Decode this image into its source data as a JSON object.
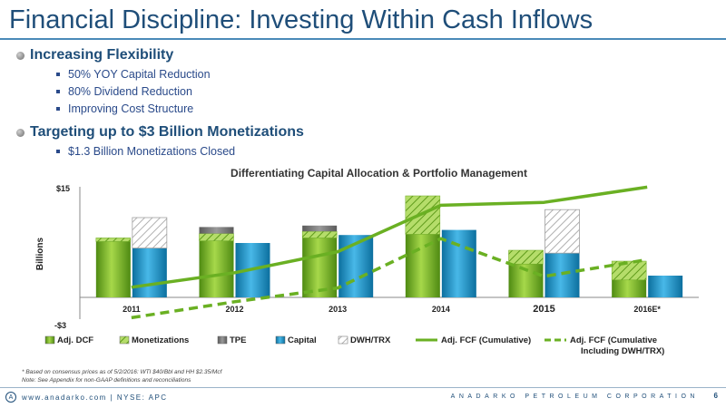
{
  "slide": {
    "title": "Financial Discipline: Investing Within Cash Inflows",
    "bullets": [
      {
        "text": "Increasing Flexibility",
        "subs": [
          "50% YOY Capital Reduction",
          "80% Dividend Reduction",
          "Improving Cost Structure"
        ]
      },
      {
        "text": "Targeting up to $3 Billion Monetizations",
        "subs": [
          "$1.3 Billion Monetizations Closed"
        ]
      }
    ],
    "footnote_1": "*  Based on consensus prices as of 5/2/2016: WTI $40/Bbl and HH $2.35/Mcf",
    "footnote_2": "Note: See Appendix for non-GAAP definitions and reconciliations",
    "footer_url": "www.anadarko.com | NYSE: APC",
    "footer_company": "ANADARKO PETROLEUM CORPORATION",
    "page_number": "6",
    "logo_text": "A"
  },
  "colors": {
    "title": "#1f4e79",
    "dcf": "#6aa81e",
    "monetizations": "#8cc63f",
    "tpe": "#7f7f7f",
    "capital": "#1e8fc4",
    "dwh": "#bfbfbf",
    "fcf_line": "#6ab023"
  },
  "chart_data": {
    "type": "bar",
    "title": "Differentiating Capital Allocation & Portfolio Management",
    "ylabel": "Billions",
    "ylim": [
      -3,
      15
    ],
    "ytick_labels": [
      "$15",
      "-$3"
    ],
    "categories": [
      "2011",
      "2012",
      "2013",
      "2014",
      "2015",
      "2016E*"
    ],
    "stacked_series": [
      {
        "name": "Adj. DCF",
        "values": [
          7.7,
          7.8,
          8.2,
          8.7,
          4.6,
          2.4
        ]
      },
      {
        "name": "Monetizations",
        "values": [
          0.5,
          1.0,
          0.9,
          5.3,
          1.9,
          2.6
        ]
      },
      {
        "name": "TPE",
        "values": [
          0,
          0.9,
          0.8,
          0,
          0,
          0
        ]
      }
    ],
    "capital_series": {
      "name": "Capital",
      "values": [
        6.8,
        7.5,
        8.6,
        9.3,
        6.1,
        3.0
      ]
    },
    "dwh_series": {
      "name": "DWH/TRX",
      "values": [
        4.2,
        0,
        0,
        0,
        6.0,
        0
      ]
    },
    "line_series": [
      {
        "name": "Adj. FCF (Cumulative)",
        "values": [
          1.4,
          3.4,
          6.3,
          12.7,
          13.1,
          15.2
        ],
        "style": "solid"
      },
      {
        "name": "Adj. FCF (Cumulative Including DWH/TRX)",
        "values": [
          -2.8,
          -0.6,
          1.3,
          8.1,
          2.9,
          5.2
        ],
        "style": "dashed"
      }
    ],
    "legend": [
      "Adj. DCF",
      "Monetizations",
      "TPE",
      "Capital",
      "DWH/TRX",
      "Adj. FCF (Cumulative)",
      "Adj. FCF (Cumulative",
      "Including DWH/TRX)"
    ],
    "legend_position": "bottom"
  }
}
